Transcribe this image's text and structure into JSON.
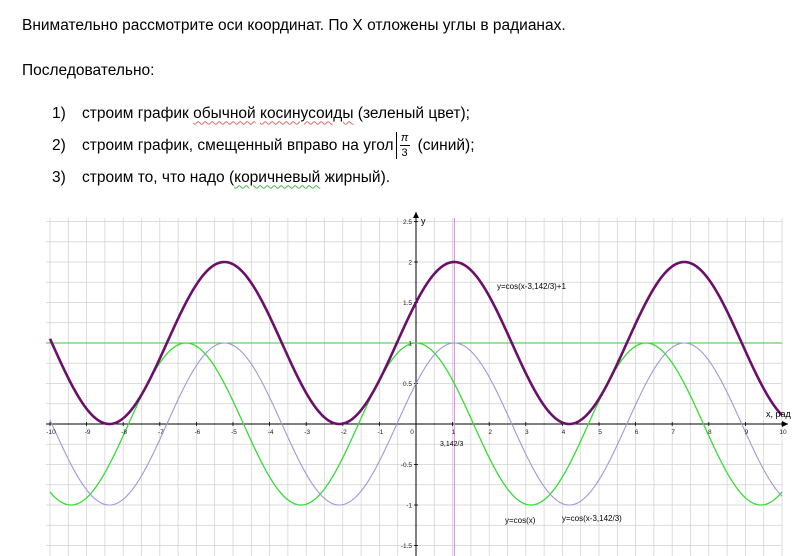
{
  "intro": "Внимательно  рассмотрите  оси координат. По X отложены углы в радианах.",
  "sequence_label": "Последовательно:",
  "steps": [
    {
      "num": "1)",
      "before": "строим график ",
      "squig1": "обычной",
      "mid": " ",
      "squig2": "косинусоиды",
      "after": " (зеленый цвет);"
    },
    {
      "num": "2)",
      "text": "строим график, смещенный вправо на угол",
      "frac_top": "π",
      "frac_bottom": "3",
      "after": " (синий);"
    },
    {
      "num": "3)",
      "before": "строим то, что надо (",
      "squig1": "коричневый",
      "after": " жирный)."
    }
  ],
  "graph": {
    "x_axis_label": "x, рад",
    "y_axis_label": "y",
    "x_ticks": [
      "-10",
      "-9",
      "-8",
      "-7",
      "-6",
      "-5",
      "-4",
      "-3",
      "-2",
      "-1",
      "0",
      "1",
      "2",
      "3",
      "4",
      "5",
      "6",
      "7",
      "8",
      "9",
      "10"
    ],
    "y_ticks": [
      "2.5",
      "2",
      "1.5",
      "1",
      "0.5",
      "-0.5",
      "-1",
      "-1.5"
    ],
    "marker_label": "3,142/3",
    "labels": {
      "shifted_plus_one": "y=cos(x-3,142/3)+1",
      "cos": "y=cos(x)",
      "shifted": "y=cos(x-3,142/3)"
    },
    "colors": {
      "cos": "#33dd33",
      "shifted": "#9a9ad8",
      "shifted_plus_one": "#6b0f6b",
      "marker": "#e07ae0",
      "hline": "#33cc33",
      "grid": "#d0d0d0"
    }
  }
}
